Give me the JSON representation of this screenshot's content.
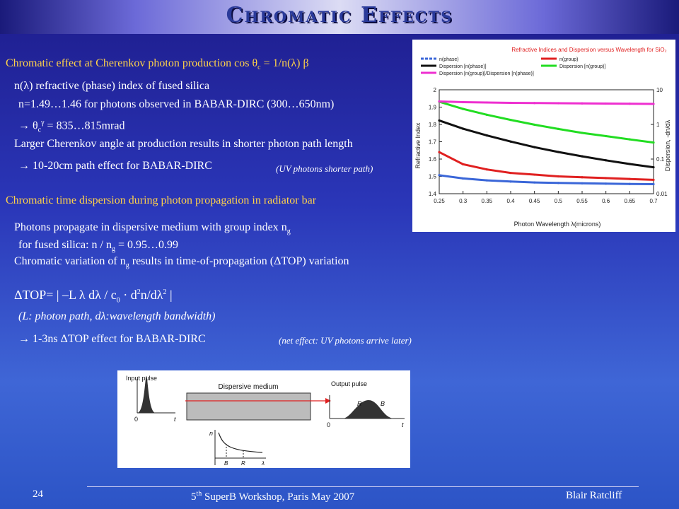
{
  "slide": {
    "title": "Chromatic Effects",
    "section1": {
      "heading": "Chromatic effect at Cherenkov photon production cos θ",
      "heading_sub": "c",
      "heading_tail": " = 1/n(λ) β",
      "line1": "n(λ) refractive (phase) index of fused silica",
      "line2": "n=1.49…1.46 for photons observed in BABAR-DIRC (300…650nm)",
      "line3_pre": "→ θ",
      "line3_sub": "c",
      "line3_sup": "γ",
      "line3_post": " = 835…815mrad",
      "line4": "Larger Cherenkov angle at production results in shorter photon path length",
      "line5": "→ 10-20cm path effect for BABAR-DIRC",
      "line5_note": "(UV photons shorter path)"
    },
    "section2": {
      "heading": "Chromatic time dispersion during photon propagation in radiator bar",
      "line1_pre": "Photons propagate in dispersive medium with group index n",
      "line1_sub": "g",
      "line2_pre": "for fused silica: n / n",
      "line2_sub": "g",
      "line2_post": " = 0.95…0.99",
      "line3_pre": "Chromatic variation of n",
      "line3_sub": "g",
      "line3_post": " results in time-of-propagation (ΔTOP) variation",
      "formula_pre": "ΔTOP= | –L  λ  dλ / c",
      "formula_sub": "0",
      "formula_mid": " · d",
      "formula_sup1": "2",
      "formula_mid2": "n/dλ",
      "formula_sup2": "2",
      "formula_post": " |",
      "formula_note": "(L: photon path, dλ:wavelength bandwidth)",
      "line4": "→ 1-3ns ΔTOP effect for BABAR-DIRC",
      "line4_note": "(net effect: UV photons arrive later)"
    },
    "footer": {
      "page_number": "24",
      "event_pre": "5",
      "event_sup": "th",
      "event_post": "  SuperB Workshop, Paris  May 2007",
      "author": "Blair Ratcliff"
    }
  },
  "chart_data": {
    "type": "line",
    "title": "Refractive Indices and Dispersion versus Wavelength for SiO₂",
    "xlabel": "Photon Wavelength λ(microns)",
    "ylabel": "Refractive Index",
    "y2label": "Dispersion, -dn/dλ",
    "xlim": [
      0.25,
      0.7
    ],
    "ylim": [
      1.4,
      2.0
    ],
    "y2lim": [
      0.01,
      10
    ],
    "y2scale": "log",
    "x_ticks": [
      "0.25",
      "0.3",
      "0.35",
      "0.4",
      "0.45",
      "0.5",
      "0.55",
      "0.6",
      "0.65",
      "0.7"
    ],
    "y_ticks": [
      "2",
      "1.9",
      "1.8",
      "1.7",
      "1.6",
      "1.5",
      "1.4"
    ],
    "y2_ticks": [
      "10",
      "1",
      "0.1",
      "0.01"
    ],
    "legend": [
      {
        "name": "n(phase)",
        "color": "#3a66d8",
        "dash": true
      },
      {
        "name": "n(group)",
        "color": "#e02020",
        "dash": false
      },
      {
        "name": "Dispersion [n(phase)]",
        "color": "#111111",
        "dash": false
      },
      {
        "name": "Dispersion [n(group)]",
        "color": "#22dd22",
        "dash": false
      },
      {
        "name": "Dispersion [n(group)]/Dispersion [n(phase)]",
        "color": "#ee2fd0",
        "dash": false
      }
    ],
    "series": [
      {
        "name": "n(phase)",
        "axis": "left",
        "color": "#3a66d8",
        "x": [
          0.25,
          0.3,
          0.35,
          0.4,
          0.45,
          0.5,
          0.55,
          0.6,
          0.65,
          0.7
        ],
        "values": [
          1.507,
          1.488,
          1.477,
          1.47,
          1.465,
          1.462,
          1.46,
          1.458,
          1.456,
          1.455
        ]
      },
      {
        "name": "n(group)",
        "axis": "left",
        "color": "#e02020",
        "x": [
          0.25,
          0.3,
          0.35,
          0.4,
          0.45,
          0.5,
          0.55,
          0.6,
          0.65,
          0.7
        ],
        "values": [
          1.64,
          1.57,
          1.54,
          1.52,
          1.51,
          1.5,
          1.495,
          1.49,
          1.485,
          1.48
        ]
      },
      {
        "name": "Dispersion [n(phase)]",
        "axis": "right",
        "color": "#111111",
        "x": [
          0.25,
          0.3,
          0.35,
          0.4,
          0.45,
          0.5,
          0.55,
          0.6,
          0.65,
          0.7
        ],
        "values": [
          1.3,
          0.75,
          0.48,
          0.32,
          0.22,
          0.16,
          0.12,
          0.092,
          0.072,
          0.058
        ]
      },
      {
        "name": "Dispersion [n(group)]",
        "axis": "right",
        "color": "#22dd22",
        "x": [
          0.25,
          0.3,
          0.35,
          0.4,
          0.45,
          0.5,
          0.55,
          0.6,
          0.65,
          0.7
        ],
        "values": [
          4.5,
          2.8,
          1.9,
          1.35,
          0.98,
          0.74,
          0.57,
          0.46,
          0.37,
          0.3
        ]
      },
      {
        "name": "Dispersion [n(group)]/Dispersion [n(phase)]",
        "axis": "right",
        "color": "#ee2fd0",
        "x": [
          0.25,
          0.3,
          0.35,
          0.4,
          0.45,
          0.5,
          0.55,
          0.6,
          0.65,
          0.7
        ],
        "values": [
          4.6,
          4.4,
          4.3,
          4.2,
          4.15,
          4.1,
          4.05,
          4.0,
          3.95,
          3.9
        ]
      }
    ]
  },
  "diagram": {
    "input_label": "Input pulse",
    "medium_label": "Dispersive medium",
    "output_label": "Output pulse",
    "zero_label_1": "0",
    "time_label_1": "t",
    "zero_label_2": "0",
    "time_label_2": "t",
    "peak_label_r": "R",
    "peak_label_b": "B",
    "inset_ylabel": "n",
    "inset_b": "B",
    "inset_r": "R",
    "inset_lambda": "λ",
    "arrow_color": "#e02020"
  }
}
